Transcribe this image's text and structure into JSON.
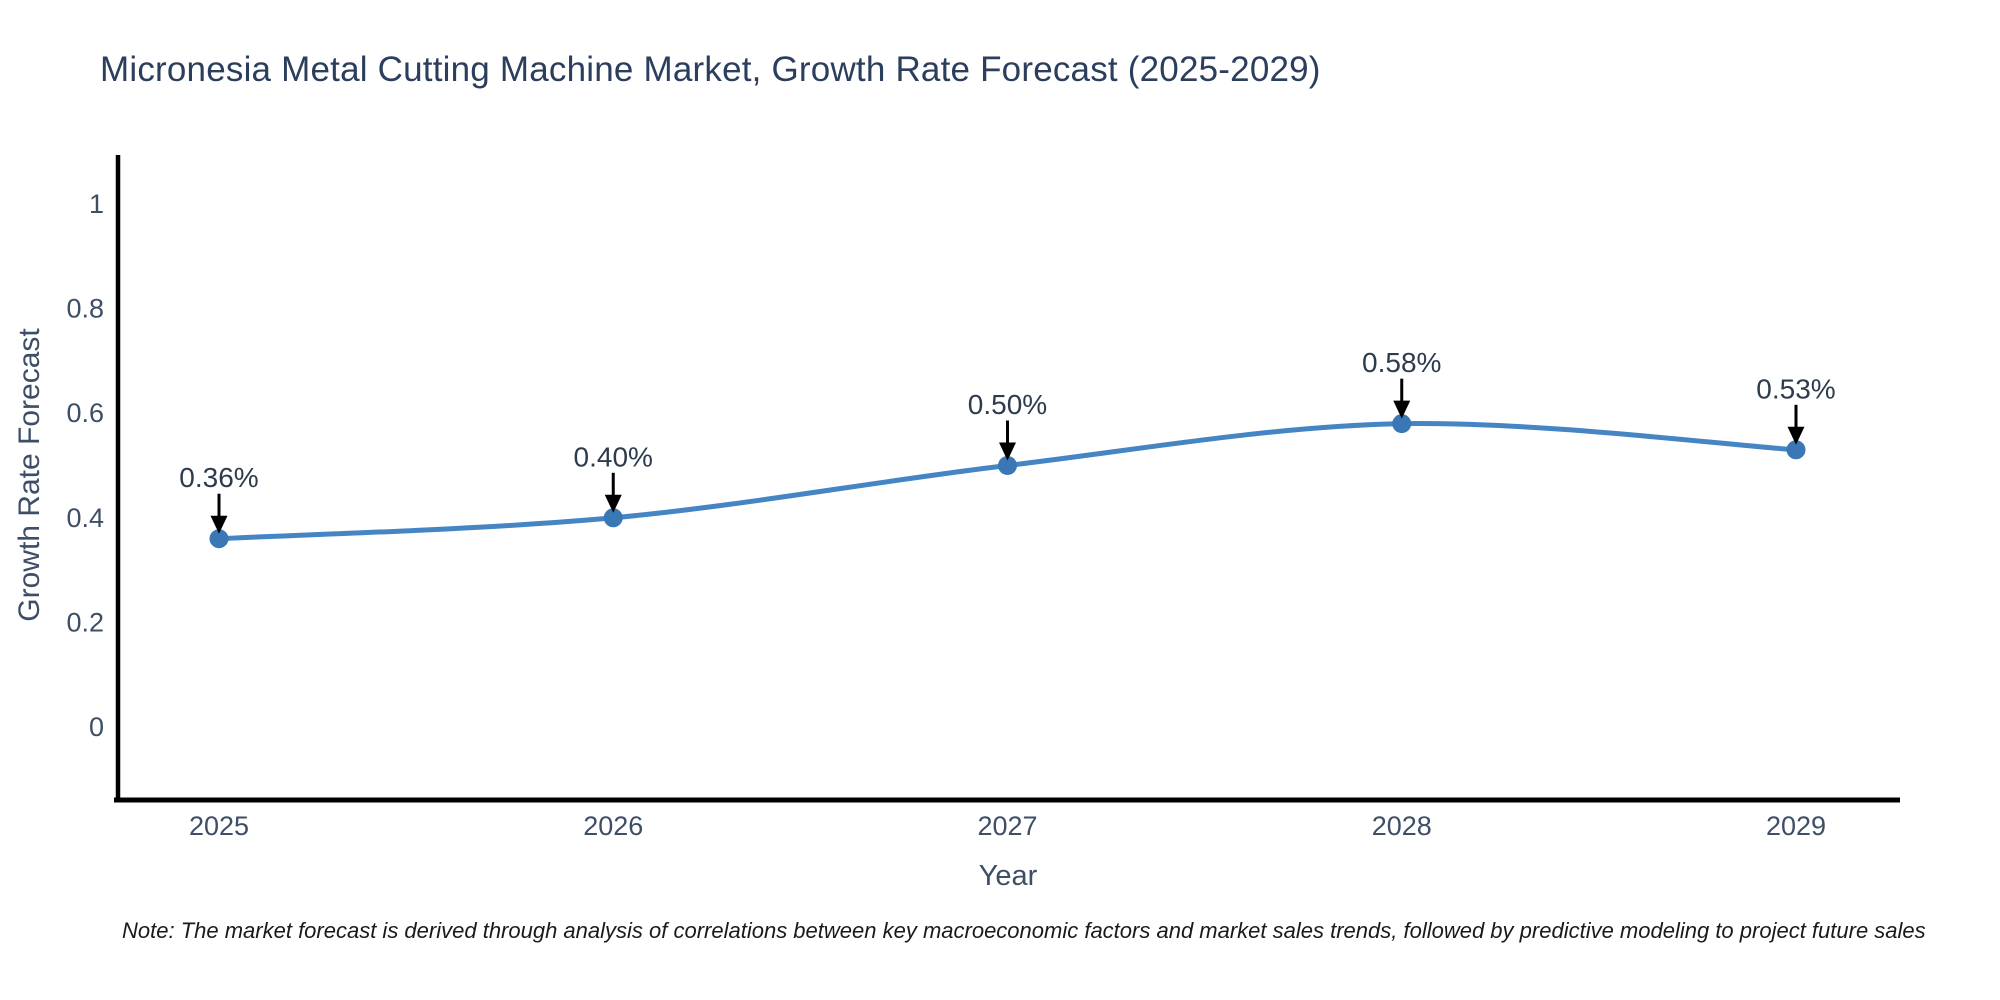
{
  "chart_data": {
    "type": "line",
    "title": "Micronesia Metal Cutting Machine Market, Growth Rate Forecast (2025-2029)",
    "xlabel": "Year",
    "ylabel": "Growth Rate Forecast",
    "x": [
      "2025",
      "2026",
      "2027",
      "2028",
      "2029"
    ],
    "series": [
      {
        "name": "Growth Rate Forecast",
        "values": [
          0.36,
          0.4,
          0.5,
          0.58,
          0.53
        ]
      }
    ],
    "point_labels": [
      "0.36%",
      "0.40%",
      "0.50%",
      "0.58%",
      "0.53%"
    ],
    "ytick_labels": [
      "0",
      "0.2",
      "0.4",
      "0.6",
      "0.8",
      "1"
    ],
    "ytick_values": [
      0,
      0.2,
      0.4,
      0.6,
      0.8,
      1
    ],
    "ylim": [
      0,
      1
    ],
    "grid": false,
    "legend_position": "none",
    "line_style": "smooth-spline",
    "marker_style": "circle",
    "annotation_style": "value-above-with-down-arrow",
    "note": "Note: The market forecast is derived through analysis of correlations between key macroeconomic factors and market sales trends, followed by predictive modeling to project future sales"
  },
  "colors": {
    "background": "#ffffff",
    "title_text": "#2c3e5d",
    "axis_text": "#3d4e66",
    "annotation_text": "#2e3b4d",
    "note_text": "#1a1a1a",
    "spine": "#000000",
    "arrow": "#000000",
    "line": "#4585c3",
    "marker": "#3a77b5"
  }
}
